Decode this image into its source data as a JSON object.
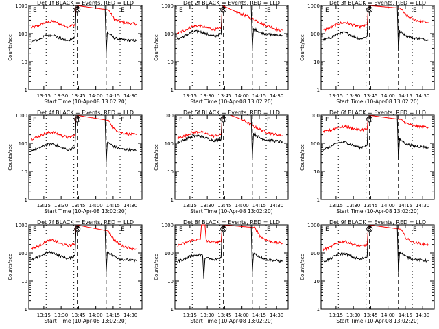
{
  "chart_data": [
    {
      "type": "line",
      "title": "Det 1f BLACK = Events, RED = LLD",
      "xlabel": "Start Time (10-Apr-08 13:02:20)",
      "ylabel": "Counts/sec",
      "x_ticks": [
        "13:15",
        "13:30",
        "13:45",
        "14:00",
        "14:15",
        "14:30"
      ],
      "y_ticks": [
        "1",
        "10",
        "100",
        "1000"
      ],
      "ylim": [
        1,
        1000
      ],
      "y_scale": "log",
      "markers": [
        "E",
        "S",
        "E"
      ],
      "series": [
        {
          "color": "#ff0000",
          "x": [
            "13:04",
            "13:10",
            "13:17",
            "13:23",
            "13:30",
            "13:36",
            "13:42",
            "13:43",
            "14:11",
            "14:16",
            "14:22",
            "14:29",
            "14:35"
          ],
          "y": [
            160,
            190,
            250,
            270,
            210,
            175,
            210,
            1000,
            700,
            330,
            260,
            230,
            220
          ]
        },
        {
          "color": "#000000",
          "x": [
            "13:04",
            "13:10",
            "13:17",
            "13:23",
            "13:30",
            "13:36",
            "13:42",
            "13:43",
            "14:08",
            "14:09",
            "14:10",
            "14:16",
            "14:22",
            "14:29",
            "14:35"
          ],
          "y": [
            50,
            60,
            85,
            90,
            65,
            55,
            75,
            1000,
            1000,
            20,
            110,
            70,
            60,
            58,
            55
          ]
        }
      ]
    },
    {
      "type": "line",
      "title": "Det 2f BLACK = Events, RED = LLD",
      "xlabel": "Start Time (10-Apr-08 13:02:20)",
      "ylabel": "Counts/sec",
      "x_ticks": [
        "13:15",
        "13:30",
        "13:45",
        "14:00",
        "14:15",
        "14:30"
      ],
      "y_ticks": [
        "1",
        "10",
        "100",
        "1000"
      ],
      "ylim": [
        1,
        1000
      ],
      "y_scale": "log",
      "markers": [
        "E",
        "S",
        "E"
      ],
      "series": [
        {
          "color": "#ff0000",
          "x": [
            "13:04",
            "13:10",
            "13:17",
            "13:23",
            "13:30",
            "13:36",
            "13:42",
            "13:43",
            "13:55",
            "14:05",
            "14:12",
            "14:18",
            "14:24",
            "14:30",
            "14:35"
          ],
          "y": [
            100,
            130,
            180,
            190,
            160,
            140,
            150,
            1000,
            600,
            400,
            300,
            220,
            180,
            140,
            130
          ]
        },
        {
          "color": "#000000",
          "x": [
            "13:04",
            "13:10",
            "13:17",
            "13:23",
            "13:30",
            "13:36",
            "13:42",
            "13:43",
            "14:08",
            "14:09",
            "14:10",
            "14:16",
            "14:22",
            "14:29",
            "14:35"
          ],
          "y": [
            65,
            80,
            115,
            120,
            95,
            80,
            95,
            1000,
            1000,
            30,
            150,
            110,
            95,
            90,
            85
          ]
        }
      ]
    },
    {
      "type": "line",
      "title": "Det 3f BLACK = Events, RED = LLD",
      "xlabel": "Start Time (10-Apr-08 13:02:20)",
      "ylabel": "Counts/sec",
      "x_ticks": [
        "13:15",
        "13:30",
        "13:45",
        "14:00",
        "14:15",
        "14:30"
      ],
      "y_ticks": [
        "1",
        "10",
        "100",
        "1000"
      ],
      "ylim": [
        1,
        1000
      ],
      "y_scale": "log",
      "markers": [
        "E",
        "S",
        "E"
      ],
      "series": [
        {
          "color": "#ff0000",
          "x": [
            "13:04",
            "13:10",
            "13:17",
            "13:23",
            "13:30",
            "13:36",
            "13:42",
            "13:43",
            "14:11",
            "14:16",
            "14:22",
            "14:29",
            "14:35"
          ],
          "y": [
            130,
            160,
            230,
            250,
            200,
            170,
            200,
            1000,
            800,
            420,
            320,
            270,
            250
          ]
        },
        {
          "color": "#000000",
          "x": [
            "13:04",
            "13:10",
            "13:17",
            "13:23",
            "13:30",
            "13:36",
            "13:42",
            "13:43",
            "14:08",
            "14:09",
            "14:10",
            "14:16",
            "14:22",
            "14:29",
            "14:35"
          ],
          "y": [
            60,
            70,
            100,
            110,
            80,
            65,
            80,
            1000,
            1000,
            25,
            120,
            85,
            70,
            65,
            60
          ]
        }
      ]
    },
    {
      "type": "line",
      "title": "Det 4f BLACK = Events, RED = LLD",
      "xlabel": "Start Time (10-Apr-08 13:02:20)",
      "ylabel": "Counts/sec",
      "x_ticks": [
        "13:15",
        "13:30",
        "13:45",
        "14:00",
        "14:15",
        "14:30"
      ],
      "y_ticks": [
        "1",
        "10",
        "100",
        "1000"
      ],
      "ylim": [
        1,
        1000
      ],
      "y_scale": "log",
      "markers": [
        "E",
        "S",
        "E"
      ],
      "series": [
        {
          "color": "#ff0000",
          "x": [
            "13:04",
            "13:10",
            "13:17",
            "13:23",
            "13:30",
            "13:36",
            "13:42",
            "13:43",
            "14:11",
            "14:16",
            "14:22",
            "14:29",
            "14:35"
          ],
          "y": [
            140,
            170,
            230,
            250,
            190,
            160,
            190,
            1000,
            650,
            320,
            240,
            210,
            200
          ]
        },
        {
          "color": "#000000",
          "x": [
            "13:04",
            "13:10",
            "13:17",
            "13:23",
            "13:30",
            "13:36",
            "13:42",
            "13:43",
            "14:08",
            "14:09",
            "14:10",
            "14:16",
            "14:22",
            "14:29",
            "14:35"
          ],
          "y": [
            55,
            65,
            90,
            95,
            70,
            58,
            75,
            1000,
            1000,
            20,
            110,
            75,
            62,
            58,
            55
          ]
        }
      ]
    },
    {
      "type": "line",
      "title": "Det 5f BLACK = Events, RED = LLD",
      "xlabel": "Start Time (10-Apr-08 13:02:20)",
      "ylabel": "Counts/sec",
      "x_ticks": [
        "13:15",
        "13:30",
        "13:45",
        "14:00",
        "14:15",
        "14:30"
      ],
      "y_ticks": [
        "1",
        "10",
        "100",
        "1000"
      ],
      "ylim": [
        1,
        1000
      ],
      "y_scale": "log",
      "markers": [
        "E",
        "S",
        "E"
      ],
      "series": [
        {
          "color": "#ff0000",
          "x": [
            "13:04",
            "13:10",
            "13:17",
            "13:23",
            "13:30",
            "13:36",
            "13:42",
            "13:43",
            "13:50",
            "14:00",
            "14:10",
            "14:18",
            "14:24",
            "14:30",
            "14:35"
          ],
          "y": [
            150,
            180,
            240,
            260,
            210,
            180,
            200,
            1000,
            1000,
            700,
            400,
            280,
            230,
            200,
            190
          ]
        },
        {
          "color": "#000000",
          "x": [
            "13:04",
            "13:10",
            "13:17",
            "13:23",
            "13:30",
            "13:36",
            "13:42",
            "13:43",
            "14:08",
            "14:09",
            "14:10",
            "14:16",
            "14:22",
            "14:29",
            "14:35"
          ],
          "y": [
            110,
            130,
            175,
            185,
            150,
            125,
            140,
            1000,
            1000,
            30,
            220,
            150,
            130,
            120,
            115
          ]
        }
      ]
    },
    {
      "type": "line",
      "title": "Det 6f BLACK = Events, RED = LLD",
      "xlabel": "Start Time (10-Apr-08 13:02:20)",
      "ylabel": "Counts/sec",
      "x_ticks": [
        "13:15",
        "13:30",
        "13:45",
        "14:00",
        "14:15",
        "14:30"
      ],
      "y_ticks": [
        "1",
        "10",
        "100",
        "1000"
      ],
      "ylim": [
        1,
        1000
      ],
      "y_scale": "log",
      "markers": [
        "E",
        "S",
        "E"
      ],
      "series": [
        {
          "color": "#ff0000",
          "x": [
            "13:04",
            "13:10",
            "13:17",
            "13:23",
            "13:30",
            "13:36",
            "13:42",
            "13:43",
            "14:11",
            "14:16",
            "14:22",
            "14:29",
            "14:35"
          ],
          "y": [
            250,
            290,
            370,
            390,
            330,
            300,
            320,
            1000,
            700,
            500,
            420,
            380,
            370
          ]
        },
        {
          "color": "#000000",
          "x": [
            "13:04",
            "13:10",
            "13:17",
            "13:23",
            "13:30",
            "13:36",
            "13:42",
            "13:43",
            "14:08",
            "14:09",
            "14:10",
            "14:16",
            "14:22",
            "14:29",
            "14:35"
          ],
          "y": [
            60,
            75,
            105,
            110,
            85,
            70,
            85,
            1000,
            1000,
            25,
            140,
            95,
            80,
            75,
            70
          ]
        }
      ]
    },
    {
      "type": "line",
      "title": "Det 7f BLACK = Events, RED = LLD",
      "xlabel": "Start Time (10-Apr-08 13:02:20)",
      "ylabel": "Counts/sec",
      "x_ticks": [
        "13:15",
        "13:30",
        "13:45",
        "14:00",
        "14:15",
        "14:30"
      ],
      "y_ticks": [
        "1",
        "10",
        "100",
        "1000"
      ],
      "ylim": [
        1,
        1000
      ],
      "y_scale": "log",
      "markers": [
        "E",
        "S",
        "E"
      ],
      "series": [
        {
          "color": "#ff0000",
          "x": [
            "13:04",
            "13:10",
            "13:17",
            "13:23",
            "13:30",
            "13:36",
            "13:42",
            "13:43",
            "14:11",
            "14:16",
            "14:22",
            "14:29",
            "14:35"
          ],
          "y": [
            140,
            170,
            260,
            280,
            210,
            180,
            210,
            1000,
            600,
            280,
            190,
            150,
            140
          ]
        },
        {
          "color": "#000000",
          "x": [
            "13:04",
            "13:10",
            "13:17",
            "13:23",
            "13:30",
            "13:36",
            "13:42",
            "13:43",
            "14:08",
            "14:09",
            "14:10",
            "14:16",
            "14:22",
            "14:29",
            "14:35"
          ],
          "y": [
            55,
            70,
            100,
            105,
            75,
            62,
            80,
            1000,
            1000,
            20,
            110,
            75,
            60,
            55,
            52
          ]
        }
      ]
    },
    {
      "type": "line",
      "title": "Det 8f BLACK = Events, RED = LLD",
      "xlabel": "Start Time (10-Apr-08 13:02:20)",
      "ylabel": "Counts/sec",
      "x_ticks": [
        "13:15",
        "13:30",
        "13:45",
        "14:00",
        "14:15",
        "14:30"
      ],
      "y_ticks": [
        "1",
        "10",
        "100",
        "1000"
      ],
      "ylim": [
        1,
        1000
      ],
      "y_scale": "log",
      "markers": [
        "E",
        "S",
        "E"
      ],
      "series": [
        {
          "color": "#ff0000",
          "x": [
            "13:04",
            "13:10",
            "13:17",
            "13:24",
            "13:25",
            "13:28",
            "13:29",
            "13:30",
            "13:36",
            "13:42",
            "13:43",
            "14:11",
            "14:16",
            "14:22",
            "14:29",
            "14:35"
          ],
          "y": [
            180,
            220,
            280,
            300,
            1000,
            1000,
            300,
            260,
            240,
            250,
            1000,
            800,
            380,
            280,
            230,
            220
          ]
        },
        {
          "color": "#000000",
          "x": [
            "13:04",
            "13:10",
            "13:17",
            "13:23",
            "13:26",
            "13:27",
            "13:28",
            "13:30",
            "13:36",
            "13:42",
            "13:43",
            "14:08",
            "14:09",
            "14:10",
            "14:16",
            "14:22",
            "14:29",
            "14:35"
          ],
          "y": [
            50,
            60,
            80,
            85,
            80,
            12,
            70,
            65,
            55,
            70,
            1000,
            1000,
            20,
            100,
            70,
            58,
            54,
            50
          ]
        }
      ]
    },
    {
      "type": "line",
      "title": "Det 9f BLACK = Events, RED = LLD",
      "xlabel": "Start Time (10-Apr-08 13:02:20)",
      "ylabel": "Counts/sec",
      "x_ticks": [
        "13:15",
        "13:30",
        "13:45",
        "14:00",
        "14:15",
        "14:30"
      ],
      "y_ticks": [
        "1",
        "10",
        "100",
        "1000"
      ],
      "ylim": [
        1,
        1000
      ],
      "y_scale": "log",
      "markers": [
        "E",
        "S",
        "E"
      ],
      "series": [
        {
          "color": "#ff0000",
          "x": [
            "13:04",
            "13:10",
            "13:17",
            "13:23",
            "13:30",
            "13:36",
            "13:42",
            "13:43",
            "14:11",
            "14:16",
            "14:22",
            "14:29",
            "14:35"
          ],
          "y": [
            130,
            160,
            240,
            260,
            200,
            170,
            200,
            1000,
            700,
            320,
            240,
            210,
            200
          ]
        },
        {
          "color": "#000000",
          "x": [
            "13:04",
            "13:10",
            "13:17",
            "13:23",
            "13:30",
            "13:36",
            "13:42",
            "13:43",
            "14:08",
            "14:09",
            "14:10",
            "14:16",
            "14:22",
            "14:29",
            "14:35"
          ],
          "y": [
            50,
            62,
            90,
            95,
            70,
            58,
            75,
            1000,
            1000,
            20,
            110,
            72,
            60,
            55,
            52
          ]
        }
      ]
    }
  ]
}
